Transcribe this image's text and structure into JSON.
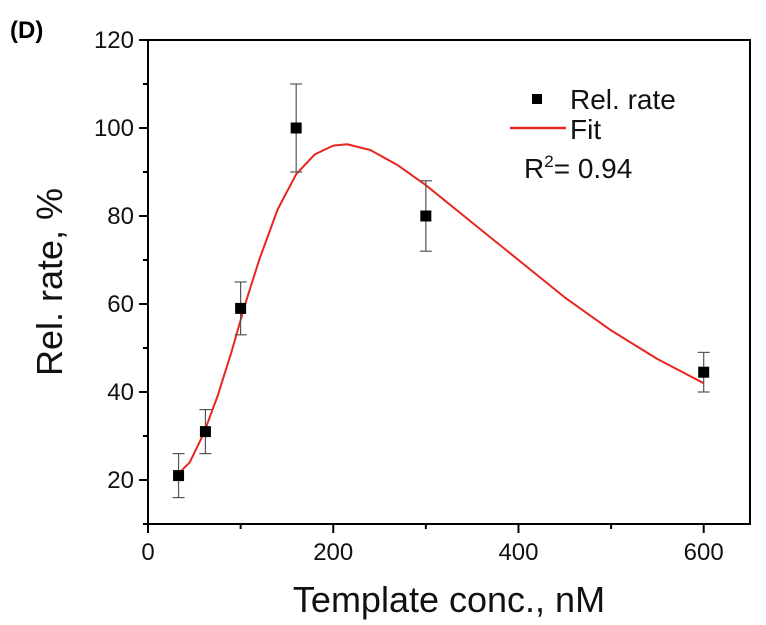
{
  "panel_label": "(D)",
  "chart_data": {
    "type": "scatter",
    "xlabel": "Template conc., nM",
    "ylabel": "Rel. rate, %",
    "xlim": [
      0,
      650
    ],
    "ylim": [
      10,
      120
    ],
    "x_ticks": [
      0,
      200,
      400,
      600
    ],
    "y_ticks": [
      20,
      40,
      60,
      80,
      100,
      120
    ],
    "series": [
      {
        "name": "Rel. rate",
        "kind": "points",
        "color": "#000000",
        "marker": "square",
        "x": [
          33,
          62,
          100,
          160,
          300,
          600
        ],
        "y": [
          21,
          31,
          59,
          100,
          80,
          44.5
        ],
        "yerr": [
          5,
          5,
          6,
          10,
          8,
          4.5
        ]
      },
      {
        "name": "Fit",
        "kind": "line",
        "color": "#e8251f",
        "x": [
          33,
          45,
          60,
          75,
          90,
          105,
          120,
          140,
          160,
          180,
          200,
          215,
          240,
          270,
          300,
          350,
          400,
          450,
          500,
          550,
          600
        ],
        "y": [
          21.5,
          24,
          30.5,
          39,
          49,
          60,
          70,
          81.5,
          89.5,
          94,
          96,
          96.3,
          95,
          91.5,
          87,
          78.5,
          70,
          61.5,
          54,
          47.5,
          42
        ]
      }
    ],
    "annotation": {
      "r_label": "R",
      "r_sup": "2",
      "r_value": "= 0.94"
    },
    "legend_position": "top-right"
  }
}
